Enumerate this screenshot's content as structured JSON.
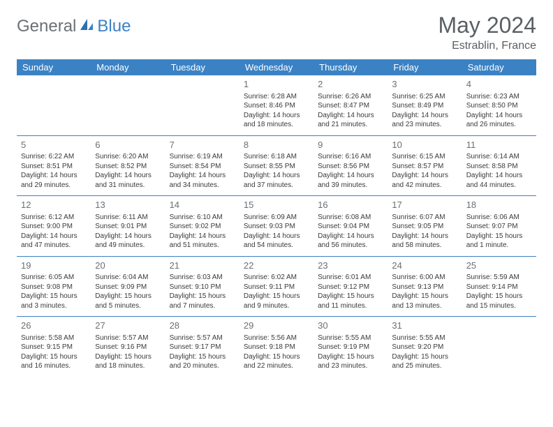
{
  "logo": {
    "text1": "General",
    "text2": "Blue"
  },
  "title": "May 2024",
  "location": "Estrablin, France",
  "style": {
    "header_bg": "#3b82c4",
    "header_fg": "#ffffff",
    "row_border": "#3b82c4",
    "text_color": "#3a3a3a",
    "muted_color": "#6b7074",
    "title_color": "#5a5f63",
    "page_bg": "#ffffff",
    "day_font_size": 10,
    "header_font_size": 13,
    "title_font_size": 32
  },
  "weekdays": [
    "Sunday",
    "Monday",
    "Tuesday",
    "Wednesday",
    "Thursday",
    "Friday",
    "Saturday"
  ],
  "weeks": [
    [
      null,
      null,
      null,
      {
        "n": "1",
        "sr": "6:28 AM",
        "ss": "8:46 PM",
        "dl": "14 hours and 18 minutes."
      },
      {
        "n": "2",
        "sr": "6:26 AM",
        "ss": "8:47 PM",
        "dl": "14 hours and 21 minutes."
      },
      {
        "n": "3",
        "sr": "6:25 AM",
        "ss": "8:49 PM",
        "dl": "14 hours and 23 minutes."
      },
      {
        "n": "4",
        "sr": "6:23 AM",
        "ss": "8:50 PM",
        "dl": "14 hours and 26 minutes."
      }
    ],
    [
      {
        "n": "5",
        "sr": "6:22 AM",
        "ss": "8:51 PM",
        "dl": "14 hours and 29 minutes."
      },
      {
        "n": "6",
        "sr": "6:20 AM",
        "ss": "8:52 PM",
        "dl": "14 hours and 31 minutes."
      },
      {
        "n": "7",
        "sr": "6:19 AM",
        "ss": "8:54 PM",
        "dl": "14 hours and 34 minutes."
      },
      {
        "n": "8",
        "sr": "6:18 AM",
        "ss": "8:55 PM",
        "dl": "14 hours and 37 minutes."
      },
      {
        "n": "9",
        "sr": "6:16 AM",
        "ss": "8:56 PM",
        "dl": "14 hours and 39 minutes."
      },
      {
        "n": "10",
        "sr": "6:15 AM",
        "ss": "8:57 PM",
        "dl": "14 hours and 42 minutes."
      },
      {
        "n": "11",
        "sr": "6:14 AM",
        "ss": "8:58 PM",
        "dl": "14 hours and 44 minutes."
      }
    ],
    [
      {
        "n": "12",
        "sr": "6:12 AM",
        "ss": "9:00 PM",
        "dl": "14 hours and 47 minutes."
      },
      {
        "n": "13",
        "sr": "6:11 AM",
        "ss": "9:01 PM",
        "dl": "14 hours and 49 minutes."
      },
      {
        "n": "14",
        "sr": "6:10 AM",
        "ss": "9:02 PM",
        "dl": "14 hours and 51 minutes."
      },
      {
        "n": "15",
        "sr": "6:09 AM",
        "ss": "9:03 PM",
        "dl": "14 hours and 54 minutes."
      },
      {
        "n": "16",
        "sr": "6:08 AM",
        "ss": "9:04 PM",
        "dl": "14 hours and 56 minutes."
      },
      {
        "n": "17",
        "sr": "6:07 AM",
        "ss": "9:05 PM",
        "dl": "14 hours and 58 minutes."
      },
      {
        "n": "18",
        "sr": "6:06 AM",
        "ss": "9:07 PM",
        "dl": "15 hours and 1 minute."
      }
    ],
    [
      {
        "n": "19",
        "sr": "6:05 AM",
        "ss": "9:08 PM",
        "dl": "15 hours and 3 minutes."
      },
      {
        "n": "20",
        "sr": "6:04 AM",
        "ss": "9:09 PM",
        "dl": "15 hours and 5 minutes."
      },
      {
        "n": "21",
        "sr": "6:03 AM",
        "ss": "9:10 PM",
        "dl": "15 hours and 7 minutes."
      },
      {
        "n": "22",
        "sr": "6:02 AM",
        "ss": "9:11 PM",
        "dl": "15 hours and 9 minutes."
      },
      {
        "n": "23",
        "sr": "6:01 AM",
        "ss": "9:12 PM",
        "dl": "15 hours and 11 minutes."
      },
      {
        "n": "24",
        "sr": "6:00 AM",
        "ss": "9:13 PM",
        "dl": "15 hours and 13 minutes."
      },
      {
        "n": "25",
        "sr": "5:59 AM",
        "ss": "9:14 PM",
        "dl": "15 hours and 15 minutes."
      }
    ],
    [
      {
        "n": "26",
        "sr": "5:58 AM",
        "ss": "9:15 PM",
        "dl": "15 hours and 16 minutes."
      },
      {
        "n": "27",
        "sr": "5:57 AM",
        "ss": "9:16 PM",
        "dl": "15 hours and 18 minutes."
      },
      {
        "n": "28",
        "sr": "5:57 AM",
        "ss": "9:17 PM",
        "dl": "15 hours and 20 minutes."
      },
      {
        "n": "29",
        "sr": "5:56 AM",
        "ss": "9:18 PM",
        "dl": "15 hours and 22 minutes."
      },
      {
        "n": "30",
        "sr": "5:55 AM",
        "ss": "9:19 PM",
        "dl": "15 hours and 23 minutes."
      },
      {
        "n": "31",
        "sr": "5:55 AM",
        "ss": "9:20 PM",
        "dl": "15 hours and 25 minutes."
      },
      null
    ]
  ],
  "labels": {
    "sunrise": "Sunrise:",
    "sunset": "Sunset:",
    "daylight": "Daylight:"
  }
}
